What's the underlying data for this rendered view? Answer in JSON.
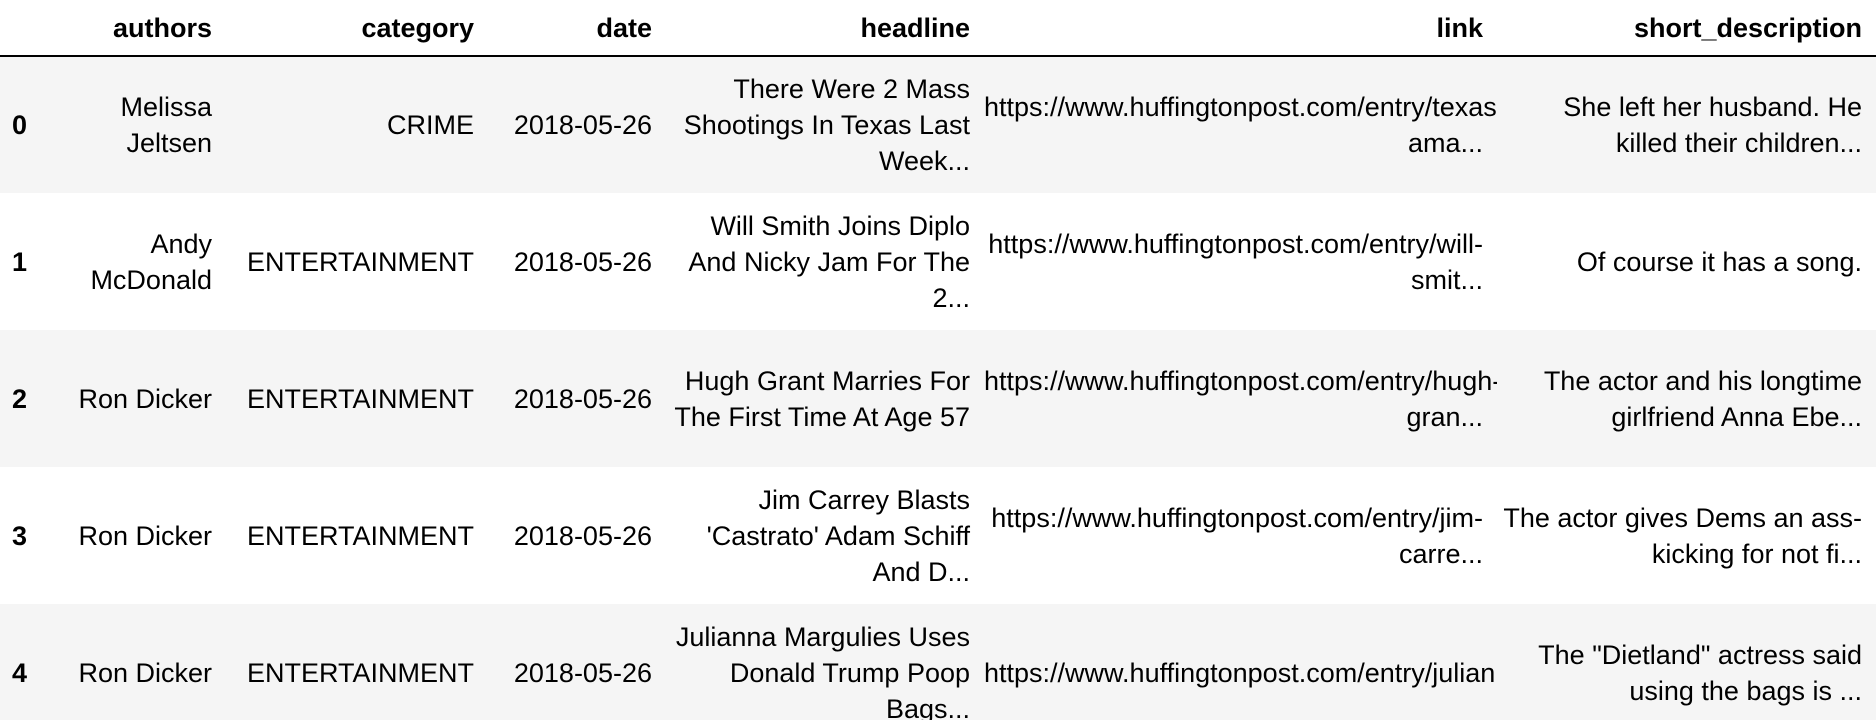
{
  "table": {
    "columns": [
      "",
      "authors",
      "category",
      "date",
      "headline",
      "link",
      "short_description"
    ],
    "rows": [
      {
        "index": "0",
        "authors": "Melissa Jeltsen",
        "category": "CRIME",
        "date": "2018-05-26",
        "headline": "There Were 2 Mass Shootings In Texas Last Week...",
        "link": "https://www.huffingtonpost.com/entry/texas-ama...",
        "short_description": "She left her husband. He killed their children..."
      },
      {
        "index": "1",
        "authors": "Andy McDonald",
        "category": "ENTERTAINMENT",
        "date": "2018-05-26",
        "headline": "Will Smith Joins Diplo And Nicky Jam For The 2...",
        "link": "https://www.huffingtonpost.com/entry/will-smit...",
        "short_description": "Of course it has a song."
      },
      {
        "index": "2",
        "authors": "Ron Dicker",
        "category": "ENTERTAINMENT",
        "date": "2018-05-26",
        "headline": "Hugh Grant Marries For The First Time At Age 57",
        "link": "https://www.huffingtonpost.com/entry/hugh-gran...",
        "short_description": "The actor and his longtime girlfriend Anna Ebe..."
      },
      {
        "index": "3",
        "authors": "Ron Dicker",
        "category": "ENTERTAINMENT",
        "date": "2018-05-26",
        "headline": "Jim Carrey Blasts 'Castrato' Adam Schiff And D...",
        "link": "https://www.huffingtonpost.com/entry/jim-carre...",
        "short_description": "The actor gives Dems an ass-kicking for not fi..."
      },
      {
        "index": "4",
        "authors": "Ron Dicker",
        "category": "ENTERTAINMENT",
        "date": "2018-05-26",
        "headline": "Julianna Margulies Uses Donald Trump Poop Bags...",
        "link": "https://www.huffingtonpost.com/entry/julianna-...",
        "short_description": "The \"Dietland\" actress said using the bags is ..."
      }
    ]
  },
  "colors": {
    "stripe": "#f5f5f5",
    "background": "#ffffff",
    "text": "#000000",
    "header_rule": "#000000"
  }
}
